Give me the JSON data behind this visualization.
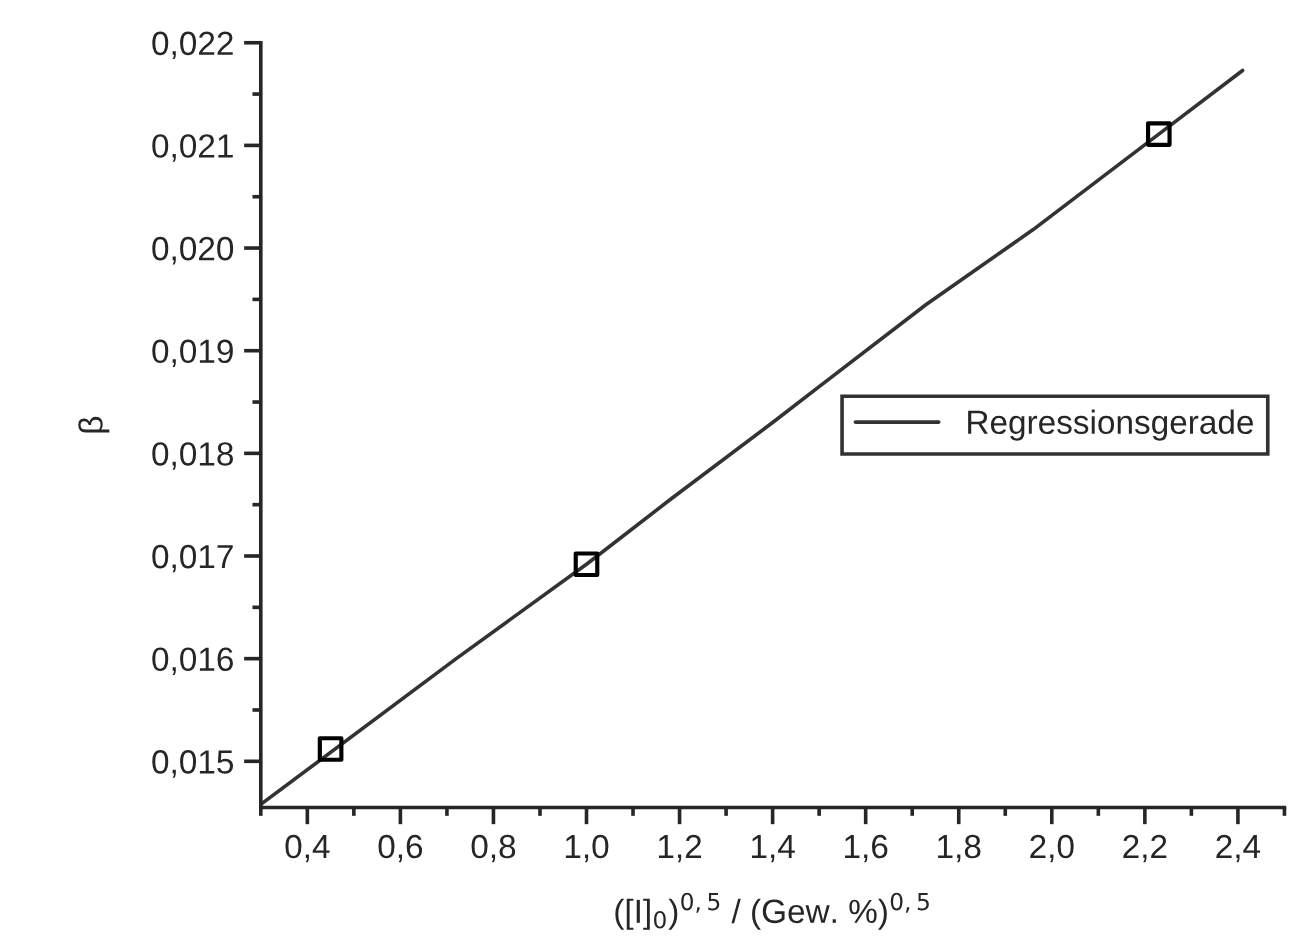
{
  "chart_data": {
    "type": "scatter",
    "xlabel": "([I]$_{0}$)$^{0,5}$ / (Gew. %)$^{0,5}$",
    "ylabel": "β",
    "series": [
      {
        "color": "#000000",
        "marker": "square",
        "x": [
          0.45,
          1.0,
          2.23
        ],
        "values": [
          0.01512,
          0.01692,
          0.02111
        ]
      },
      {
        "type": "line",
        "name": "Regressionsgerade",
        "color": "#333333",
        "line_style": "solid",
        "x": [
          0.3,
          0.72,
          1.0,
          1.18,
          1.4,
          1.5,
          1.73,
          1.96,
          2.23,
          2.41
        ],
        "values": [
          0.01458,
          0.016,
          0.01692,
          0.01755,
          0.0183,
          0.01865,
          0.01945,
          0.02018,
          0.02111,
          0.02173
        ]
      }
    ],
    "xlim": [
      0.3,
      2.5
    ],
    "xticks": [
      {
        "value": 0.4,
        "label": "0,4"
      },
      {
        "value": 0.6,
        "label": "0,6"
      },
      {
        "value": 0.8,
        "label": "0,8"
      },
      {
        "value": 1.0,
        "label": "1,0"
      },
      {
        "value": 1.2,
        "label": "1,2"
      },
      {
        "value": 1.4,
        "label": "1,4"
      },
      {
        "value": 1.6,
        "label": "1,6"
      },
      {
        "value": 1.8,
        "label": "1,8"
      },
      {
        "value": 2.0,
        "label": "2,0"
      },
      {
        "value": 2.2,
        "label": "2,2"
      },
      {
        "value": 2.4,
        "label": "2,4"
      }
    ],
    "ylim": [
      0.01455,
      0.022
    ],
    "yticks": [
      {
        "value": 0.015,
        "label": "0,015"
      },
      {
        "value": 0.016,
        "label": "0,016"
      },
      {
        "value": 0.017,
        "label": "0,017"
      },
      {
        "value": 0.018,
        "label": "0,018"
      },
      {
        "value": 0.019,
        "label": "0,019"
      },
      {
        "value": 0.02,
        "label": "0,020"
      },
      {
        "value": 0.021,
        "label": "0,021"
      },
      {
        "value": 0.022,
        "label": "0,022"
      }
    ],
    "grid": false,
    "legend": "right"
  }
}
